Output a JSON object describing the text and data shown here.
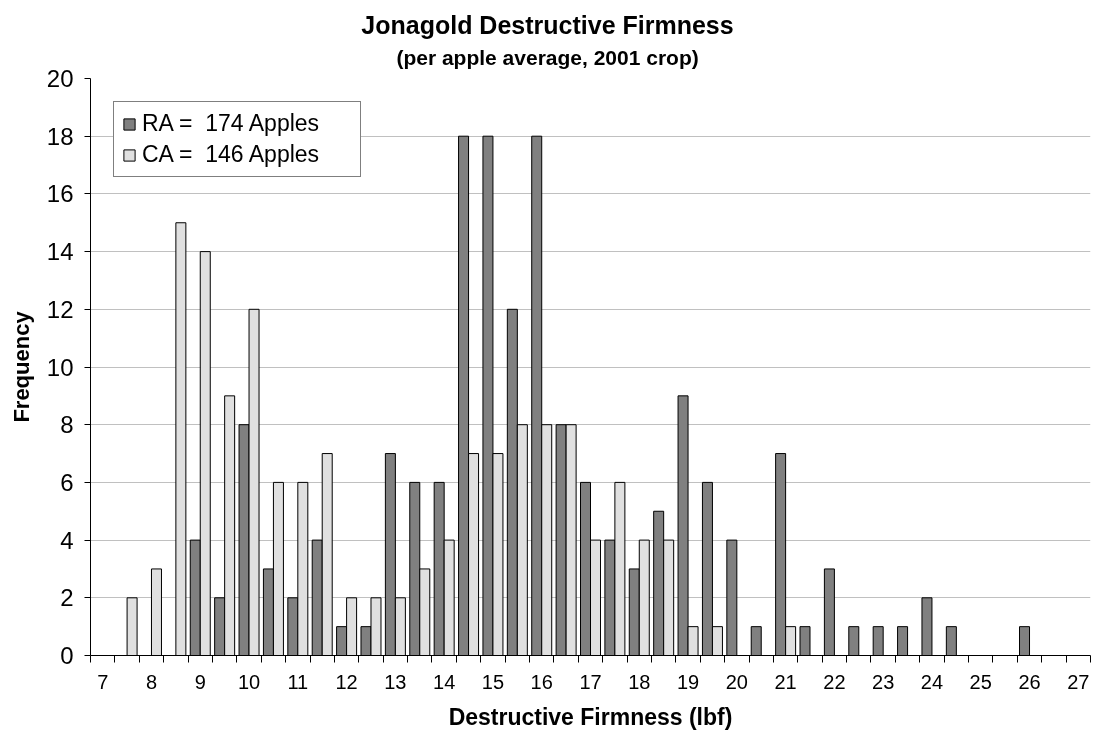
{
  "chart_data": {
    "type": "bar",
    "title": "Jonagold Destructive Firmness",
    "subtitle": "(per apple average, 2001 crop)",
    "xlabel": "Destructive Firmness (lbf)",
    "ylabel": "Frequency",
    "categories": [
      "7",
      null,
      "8",
      null,
      "9",
      null,
      "10",
      null,
      "11",
      null,
      "12",
      null,
      "13",
      null,
      "14",
      null,
      "15",
      null,
      "16",
      null,
      "17",
      null,
      "18",
      null,
      "19",
      null,
      "20",
      null,
      "21",
      null,
      "22",
      null,
      "23",
      null,
      "24",
      null,
      "25",
      null,
      "26",
      null,
      "27"
    ],
    "series": [
      {
        "name": "RA =  174 Apples",
        "color": "#808080",
        "values": [
          0,
          0,
          0,
          0,
          4,
          2,
          8,
          3,
          2,
          4,
          1,
          1,
          7,
          6,
          6,
          18,
          18,
          12,
          18,
          8,
          6,
          4,
          3,
          5,
          9,
          6,
          4,
          1,
          7,
          1,
          3,
          1,
          1,
          1,
          2,
          1,
          0,
          0,
          1,
          0,
          0
        ]
      },
      {
        "name": "CA =  146 Apples",
        "color": "#e0e0e0",
        "values": [
          0,
          2,
          3,
          15,
          14,
          9,
          12,
          6,
          6,
          7,
          2,
          2,
          2,
          3,
          4,
          7,
          7,
          8,
          8,
          8,
          4,
          6,
          4,
          4,
          1,
          1,
          0,
          0,
          1,
          0,
          0,
          0,
          0,
          0,
          0,
          0,
          0,
          0,
          0,
          0,
          0
        ]
      }
    ],
    "ylim": [
      0,
      20
    ],
    "yticks": [
      0,
      2,
      4,
      6,
      8,
      10,
      12,
      14,
      16,
      18,
      20
    ],
    "grid": "y",
    "legend": "top left"
  }
}
